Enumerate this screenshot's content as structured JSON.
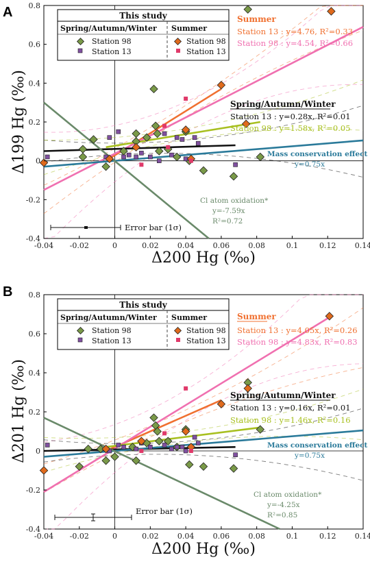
{
  "chart_data": [
    {
      "panel": "A",
      "type": "scatter",
      "ylabel": "Δ199 Hg (‰)",
      "xlabel": "Δ200 Hg (‰)",
      "xlim": [
        -0.04,
        0.14
      ],
      "ylim": [
        -0.4,
        0.8
      ],
      "x_ticks": [
        "-0.04",
        "-0.02",
        "0",
        "0.02",
        "0.04",
        "0.06",
        "0.08",
        "0.1",
        "0.12",
        "0.14"
      ],
      "y_ticks": [
        "-0.4",
        "-0.2",
        "0",
        "0.2",
        "0.4",
        "0.6",
        "0.8"
      ],
      "legend": {
        "title": "This study",
        "group_a": "Spring/Autumn/Winter",
        "group_b": "Summer",
        "items": [
          "Station 98",
          "Station 13",
          "Station 98",
          "Station 13"
        ]
      },
      "series": [
        {
          "name": "Station 98",
          "group": "Spring/Autumn/Winter",
          "marker": "diamond",
          "color": "#7a9a48",
          "points": [
            [
              -0.018,
              0.02
            ],
            [
              -0.018,
              0.06
            ],
            [
              -0.012,
              0.11
            ],
            [
              -0.005,
              -0.03
            ],
            [
              0.012,
              0.14
            ],
            [
              0.012,
              0.1
            ],
            [
              0.018,
              0.12
            ],
            [
              0.022,
              0.37
            ],
            [
              0.023,
              0.18
            ],
            [
              0.024,
              0.14
            ],
            [
              0.03,
              0.06
            ],
            [
              0.035,
              0.02
            ],
            [
              0.04,
              0.15
            ],
            [
              0.042,
              0.0
            ],
            [
              0.05,
              -0.05
            ],
            [
              0.067,
              -0.08
            ],
            [
              0.075,
              0.78
            ],
            [
              0.082,
              0.02
            ],
            [
              0.005,
              0.05
            ],
            [
              0.025,
              0.05
            ]
          ]
        },
        {
          "name": "Station 13",
          "group": "Spring/Autumn/Winter",
          "marker": "square",
          "color": "#8050a0",
          "points": [
            [
              -0.038,
              0.02
            ],
            [
              -0.005,
              0.02
            ],
            [
              -0.003,
              0.12
            ],
            [
              0.002,
              0.15
            ],
            [
              0.005,
              0.02
            ],
            [
              0.012,
              0.02
            ],
            [
              0.015,
              0.04
            ],
            [
              0.02,
              0.02
            ],
            [
              0.028,
              0.14
            ],
            [
              0.032,
              0.03
            ],
            [
              0.035,
              0.12
            ],
            [
              0.038,
              0.11
            ],
            [
              0.04,
              0.01
            ],
            [
              0.045,
              0.12
            ],
            [
              0.047,
              0.09
            ],
            [
              0.068,
              -0.02
            ],
            [
              0.025,
              0.0
            ],
            [
              0.008,
              0.03
            ]
          ]
        },
        {
          "name": "Station 98",
          "group": "Summer",
          "marker": "diamond",
          "color": "#e06a1c",
          "points": [
            [
              -0.04,
              -0.01
            ],
            [
              -0.003,
              0.01
            ],
            [
              0.012,
              0.07
            ],
            [
              0.04,
              0.16
            ],
            [
              0.043,
              0.01
            ],
            [
              0.06,
              0.39
            ],
            [
              0.074,
              0.19
            ],
            [
              0.122,
              0.77
            ]
          ]
        },
        {
          "name": "Station 13",
          "group": "Summer",
          "marker": "square",
          "color": "#e03a6a",
          "points": [
            [
              0.015,
              -0.02
            ],
            [
              0.028,
              0.18
            ],
            [
              0.04,
              0.32
            ],
            [
              0.043,
              0.0
            ],
            [
              0.03,
              0.07
            ]
          ]
        }
      ],
      "fits": [
        {
          "label": "Station 13 : y=4.76, R²=0.33",
          "color": "#f07030",
          "from": [
            -0.005,
            0.0
          ],
          "to": [
            0.06,
            0.37
          ],
          "dashed": false
        },
        {
          "label": "Station 98 : y=4.54, R²=0.66",
          "color": "#f070b0",
          "from": [
            -0.04,
            -0.15
          ],
          "to": [
            0.14,
            0.69
          ],
          "dashed": false
        },
        {
          "label": "Station 13 : y=0.28x, R²=0.01",
          "color": "#111111",
          "from": [
            -0.04,
            0.05
          ],
          "to": [
            0.068,
            0.08
          ],
          "dashed": false
        },
        {
          "label": "Station 98 : y=1.58x, R²=0.05",
          "color": "#a8c020",
          "from": [
            -0.005,
            0.07
          ],
          "to": [
            0.082,
            0.2
          ],
          "dashed": false
        },
        {
          "label": "Mass conservation effect y=0.75x",
          "color": "#2a7a9a",
          "from": [
            -0.04,
            -0.03
          ],
          "to": [
            0.14,
            0.105
          ],
          "dashed": false
        },
        {
          "label": "Cl atom oxidation y=-7.59x",
          "color": "#6a8a6a",
          "from": [
            -0.04,
            0.3
          ],
          "to": [
            0.053,
            -0.4
          ],
          "dashed": false
        }
      ],
      "annotations": {
        "summer_head": "Summer",
        "summer_s13": "Station 13 : y=4.76, R²=0.33",
        "summer_s98": "Station 98 : y=4.54, R²=0.66",
        "saw_head": "Spring/Autumn/Winter",
        "saw_s13": "Station 13 : y=0.28x, R²=0.01",
        "saw_s98": "Station 98 : y=1.58x, R²=0.05",
        "mass_head": "Mass conservation effect",
        "mass_eq": "y=0.75x",
        "cl_head": "Cl atom oxidation*",
        "cl_eq": "y=-7.59x",
        "cl_r2": "R²=0.72",
        "error_bar": "Error bar (1σ)"
      }
    },
    {
      "panel": "B",
      "type": "scatter",
      "ylabel": "Δ201 Hg (‰)",
      "xlabel": "Δ200 Hg (‰)",
      "xlim": [
        -0.04,
        0.14
      ],
      "ylim": [
        -0.4,
        0.8
      ],
      "x_ticks": [
        "-0.04",
        "-0.02",
        "0",
        "0.02",
        "0.04",
        "0.06",
        "0.08",
        "0.1",
        "0.12",
        "0.14"
      ],
      "y_ticks": [
        "-0.4",
        "-0.2",
        "0",
        "0.2",
        "0.4",
        "0.6",
        "0.8"
      ],
      "legend": {
        "title": "This study",
        "group_a": "Spring/Autumn/Winter",
        "group_b": "Summer",
        "items": [
          "Station 98",
          "Station 13",
          "Station 98",
          "Station 13"
        ]
      },
      "series": [
        {
          "name": "Station 98",
          "group": "Spring/Autumn/Winter",
          "marker": "diamond",
          "color": "#7a9a48",
          "points": [
            [
              -0.02,
              -0.08
            ],
            [
              -0.015,
              0.01
            ],
            [
              -0.008,
              0.01
            ],
            [
              -0.005,
              -0.05
            ],
            [
              0.0,
              -0.03
            ],
            [
              0.01,
              0.02
            ],
            [
              0.012,
              -0.05
            ],
            [
              0.018,
              0.04
            ],
            [
              0.022,
              0.17
            ],
            [
              0.023,
              0.13
            ],
            [
              0.024,
              0.1
            ],
            [
              0.025,
              0.05
            ],
            [
              0.03,
              0.05
            ],
            [
              0.035,
              0.02
            ],
            [
              0.04,
              0.11
            ],
            [
              0.042,
              -0.07
            ],
            [
              0.05,
              -0.08
            ],
            [
              0.067,
              -0.09
            ],
            [
              0.075,
              0.35
            ],
            [
              0.082,
              0.11
            ]
          ]
        },
        {
          "name": "Station 13",
          "group": "Spring/Autumn/Winter",
          "marker": "square",
          "color": "#8050a0",
          "points": [
            [
              -0.038,
              0.03
            ],
            [
              -0.005,
              0.01
            ],
            [
              -0.003,
              0.0
            ],
            [
              0.002,
              0.03
            ],
            [
              0.005,
              0.02
            ],
            [
              0.012,
              0.01
            ],
            [
              0.015,
              0.04
            ],
            [
              0.02,
              0.02
            ],
            [
              0.028,
              0.03
            ],
            [
              0.032,
              0.01
            ],
            [
              0.035,
              0.02
            ],
            [
              0.038,
              0.02
            ],
            [
              0.04,
              0.0
            ],
            [
              0.045,
              0.07
            ],
            [
              0.047,
              0.04
            ],
            [
              0.068,
              -0.02
            ]
          ]
        },
        {
          "name": "Station 98",
          "group": "Summer",
          "marker": "diamond",
          "color": "#e06a1c",
          "points": [
            [
              -0.04,
              -0.1
            ],
            [
              -0.005,
              0.01
            ],
            [
              0.015,
              0.05
            ],
            [
              0.04,
              0.1
            ],
            [
              0.043,
              0.02
            ],
            [
              0.06,
              0.24
            ],
            [
              0.075,
              0.32
            ],
            [
              0.121,
              0.69
            ]
          ]
        },
        {
          "name": "Station 13",
          "group": "Summer",
          "marker": "square",
          "color": "#e03a6a",
          "points": [
            [
              0.015,
              0.0
            ],
            [
              0.028,
              0.09
            ],
            [
              0.04,
              0.32
            ],
            [
              0.043,
              0.0
            ]
          ]
        }
      ],
      "fits": [
        {
          "label": "Station 13 : y=4.05x, R²=0.26",
          "color": "#f07030",
          "from": [
            -0.005,
            0.0
          ],
          "to": [
            0.06,
            0.26
          ],
          "dashed": false
        },
        {
          "label": "Station 98 : y=4.83x, R²=0.83",
          "color": "#f070b0",
          "from": [
            -0.04,
            -0.21
          ],
          "to": [
            0.122,
            0.69
          ],
          "dashed": false
        },
        {
          "label": "Station 13 : y=0.16x, R²=0.01",
          "color": "#111111",
          "from": [
            -0.04,
            0.0
          ],
          "to": [
            0.068,
            0.02
          ],
          "dashed": false
        },
        {
          "label": "Station 98 : y=1.46x, R²=0.16",
          "color": "#a8c020",
          "from": [
            -0.005,
            0.02
          ],
          "to": [
            0.082,
            0.12
          ],
          "dashed": false
        },
        {
          "label": "Mass conservation effect y=0.75x",
          "color": "#2a7a9a",
          "from": [
            -0.04,
            -0.03
          ],
          "to": [
            0.14,
            0.105
          ],
          "dashed": false
        },
        {
          "label": "Cl atom oxidation y=-4.25x",
          "color": "#6a8a6a",
          "from": [
            -0.04,
            0.17
          ],
          "to": [
            0.093,
            -0.4
          ],
          "dashed": false
        }
      ],
      "annotations": {
        "summer_head": "Summer",
        "summer_s13": "Station 13 : y=4.05x, R²=0.26",
        "summer_s98": "Station 98 : y=4.83x, R²=0.83",
        "saw_head": "Spring/Autumn/Winter",
        "saw_s13": "Station 13 : y=0.16x, R²=0.01",
        "saw_s98": "Station 98 : y=1.46x, R²=0.16",
        "mass_head": "Mass conservation effect",
        "mass_eq": "y=0.75x",
        "cl_head": "Cl atom oxidation*",
        "cl_eq": "y=-4.25x",
        "cl_r2": "R²=0.85",
        "error_bar": "Error bar (1σ)"
      }
    }
  ]
}
